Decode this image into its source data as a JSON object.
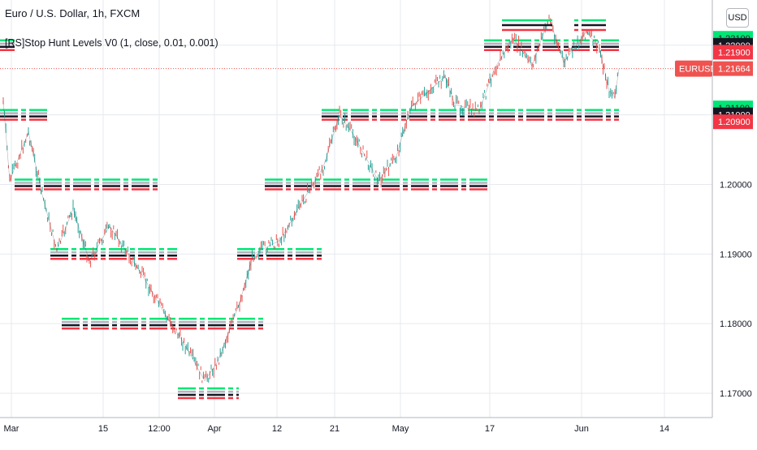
{
  "header": {
    "symbol_title": "Euro / U.S. Dollar, 1h, FXCM",
    "indicator_title": "[RS]Stop Hunt Levels V0 (1, close, 0.01, 0.001)"
  },
  "currency_button": "USD",
  "colors": {
    "up_candle": "#26a69a",
    "down_candle": "#ef5350",
    "green_level": "#00e676",
    "black_level": "#131722",
    "red_level": "#f23645",
    "price_line": "#ef5350",
    "grid": "#e6e9ef"
  },
  "chart_data": {
    "type": "candlestick",
    "title": "Euro / U.S. Dollar, 1h, FXCM",
    "indicator": "[RS]Stop Hunt Levels V0 (1, close, 0.01, 0.001)",
    "ylim": [
      1.1665,
      1.2265
    ],
    "y_ticks": [
      "1.17000",
      "1.18000",
      "1.19000",
      "1.20000",
      "1.21000",
      "1.22000"
    ],
    "x_ticks": [
      "Mar",
      "15",
      "12:00",
      "Apr",
      "12",
      "21",
      "May",
      "17",
      "Jun",
      "14"
    ],
    "grid": true,
    "price_path": [
      [
        "Mar",
        1.212
      ],
      [
        "Mar",
        1.2005
      ],
      [
        "5",
        1.2075
      ],
      [
        "8",
        1.1985
      ],
      [
        "10",
        1.1905
      ],
      [
        "13",
        1.1965
      ],
      [
        "15",
        1.189
      ],
      [
        "16",
        1.194
      ],
      [
        "12:00",
        1.187
      ],
      [
        "22",
        1.181
      ],
      [
        "25",
        1.1775
      ],
      [
        "29",
        1.1718
      ],
      [
        "Apr",
        1.1745
      ],
      [
        "5",
        1.183
      ],
      [
        "8",
        1.19
      ],
      [
        "12",
        1.192
      ],
      [
        "16",
        1.1975
      ],
      [
        "21",
        1.2025
      ],
      [
        "23",
        1.21
      ],
      [
        "27",
        1.207
      ],
      [
        "May",
        1.2005
      ],
      [
        "3",
        1.204
      ],
      [
        "7",
        1.211
      ],
      [
        "11",
        1.2155
      ],
      [
        "13",
        1.2115
      ],
      [
        "17",
        1.2105
      ],
      [
        "19",
        1.2165
      ],
      [
        "21",
        1.221
      ],
      [
        "25",
        1.217
      ],
      [
        "27",
        1.224
      ],
      [
        "31",
        1.2175
      ],
      [
        "Jun",
        1.222
      ],
      [
        "3",
        1.2195
      ],
      [
        "4",
        1.2135
      ],
      [
        "5",
        1.2125
      ],
      [
        "6",
        1.2166
      ]
    ],
    "last_price": {
      "symbol": "EURUSD",
      "value": "1.21664"
    },
    "highlighted_levels": [
      {
        "value": "1.22100",
        "color": "green"
      },
      {
        "value": "1.22000",
        "color": "black"
      },
      {
        "value": "1.21900",
        "color": "red"
      },
      {
        "value": "1.21100",
        "color": "green"
      },
      {
        "value": "1.21000",
        "color": "black"
      },
      {
        "value": "1.20900",
        "color": "red"
      }
    ],
    "stop_hunt_levels": [
      {
        "price": 1.22,
        "from": "Mar",
        "to": "Mar"
      },
      {
        "price": 1.21,
        "from": "Mar",
        "to": "5"
      },
      {
        "price": 1.2,
        "from": "Mar",
        "to": "16"
      },
      {
        "price": 1.19,
        "from": "8",
        "to": "22"
      },
      {
        "price": 1.18,
        "from": "10",
        "to": "8"
      },
      {
        "price": 1.17,
        "from": "25",
        "to": "Apr"
      },
      {
        "price": 1.19,
        "from": "5",
        "to": "16"
      },
      {
        "price": 1.2,
        "from": "8",
        "to": "May"
      },
      {
        "price": 1.21,
        "from": "16",
        "to": "Jun"
      },
      {
        "price": 1.22,
        "from": "3",
        "to": "Jun"
      },
      {
        "price": 1.23,
        "from": "21",
        "to": "Jun"
      }
    ]
  }
}
